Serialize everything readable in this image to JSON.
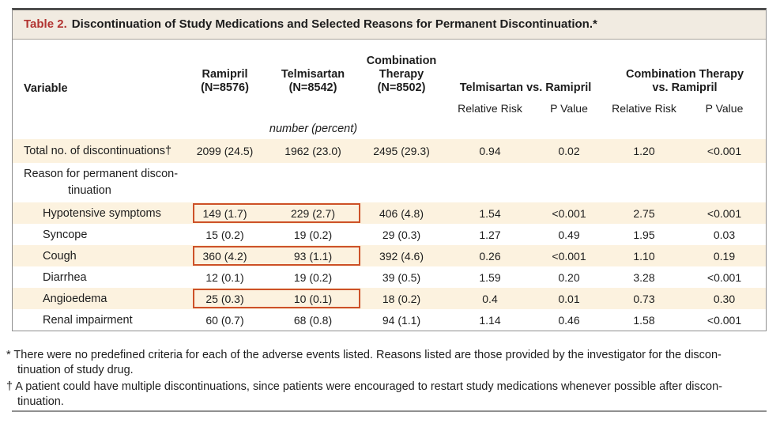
{
  "title": {
    "label": "Table 2.",
    "heading": "Discontinuation of Study Medications and Selected Reasons for Permanent Discontinuation.*"
  },
  "table": {
    "variable_header": "Variable",
    "treatment_columns": [
      "Ramipril\n(N=8576)",
      "Telmisartan\n(N=8542)",
      "Combination\nTherapy\n(N=8502)"
    ],
    "comparison_groups": [
      {
        "name": "Telmisartan vs. Ramipril",
        "sub": [
          "Relative Risk",
          "P Value"
        ]
      },
      {
        "name": "Combination Therapy\nvs. Ramipril",
        "sub": [
          "Relative Risk",
          "P Value"
        ]
      }
    ],
    "units_note": "number (percent)",
    "rows": [
      {
        "label": "Total no. of discontinuations†",
        "values": [
          "2099 (24.5)",
          "1962 (23.0)",
          "2495 (29.3)",
          "0.94",
          "0.02",
          "1.20",
          "<0.001"
        ]
      },
      {
        "label": "Reason for permanent discon-\ntinuation",
        "values": []
      },
      {
        "label": "Hypotensive symptoms",
        "highlighted": true,
        "values": [
          "149 (1.7)",
          "229 (2.7)",
          "406 (4.8)",
          "1.54",
          "<0.001",
          "2.75",
          "<0.001"
        ]
      },
      {
        "label": "Syncope",
        "values": [
          "15 (0.2)",
          "19 (0.2)",
          "29 (0.3)",
          "1.27",
          "0.49",
          "1.95",
          "0.03"
        ]
      },
      {
        "label": "Cough",
        "highlighted": true,
        "values": [
          "360 (4.2)",
          "93 (1.1)",
          "392 (4.6)",
          "0.26",
          "<0.001",
          "1.10",
          "0.19"
        ]
      },
      {
        "label": "Diarrhea",
        "values": [
          "12 (0.1)",
          "19 (0.2)",
          "39 (0.5)",
          "1.59",
          "0.20",
          "3.28",
          "<0.001"
        ]
      },
      {
        "label": "Angioedema",
        "highlighted": true,
        "values": [
          "25 (0.3)",
          "10 (0.1)",
          "18 (0.2)",
          "0.4",
          "0.01",
          "0.73",
          "0.30"
        ]
      },
      {
        "label": "Renal impairment",
        "values": [
          "60 (0.7)",
          "68 (0.8)",
          "94 (1.1)",
          "1.14",
          "0.46",
          "1.58",
          "<0.001"
        ]
      }
    ]
  },
  "footnotes": [
    "* There were no predefined criteria for each of the adverse events listed. Reasons listed are those provided by the investigator for the discon-\ntinuation of study drug.",
    "† A patient could have multiple discontinuations, since patients were encouraged to restart study medications whenever possible after discon-\ntinuation."
  ],
  "colors": {
    "title_red": "#b23431",
    "row_shade": "#fcf2df",
    "highlight_border": "#cd5128",
    "title_bar_bg": "#f1ebe1"
  }
}
